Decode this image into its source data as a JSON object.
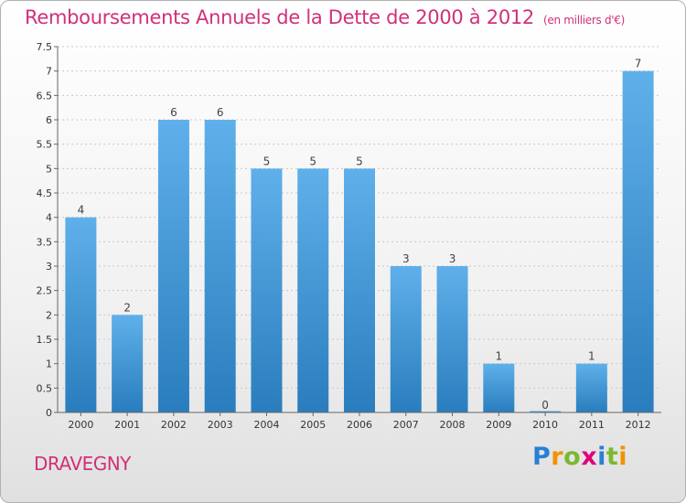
{
  "header": {
    "title": "Remboursements Annuels de la Dette de 2000 à 2012",
    "unit": "(en milliers d'€)"
  },
  "footer": {
    "commune": "DRAVEGNY",
    "logo": {
      "letters": [
        "P",
        "r",
        "o",
        "x",
        "i",
        "t",
        "i"
      ],
      "colors": [
        "#2a7fd4",
        "#f39200",
        "#7cb82f",
        "#e2007a",
        "#2a7fd4",
        "#7cb82f",
        "#f39200"
      ]
    }
  },
  "colors": {
    "title": "#d0307a",
    "bar_top": "#5fb0ea",
    "bar_bottom": "#2a7dbd",
    "grid": "#c8c8c8",
    "axis_text": "#333333"
  },
  "chart_data": {
    "type": "bar",
    "categories": [
      "2000",
      "2001",
      "2002",
      "2003",
      "2004",
      "2005",
      "2006",
      "2007",
      "2008",
      "2009",
      "2010",
      "2011",
      "2012"
    ],
    "values": [
      4,
      2,
      6,
      6,
      5,
      5,
      5,
      3,
      3,
      1,
      0,
      1,
      7
    ],
    "data_labels": [
      "4",
      "2",
      "6",
      "6",
      "5",
      "5",
      "5",
      "3",
      "3",
      "1",
      "0",
      "1",
      "7"
    ],
    "title": "Remboursements Annuels de la Dette de 2000 à 2012",
    "ylim": [
      0,
      7.5
    ],
    "yticks": [
      "0",
      "0.5",
      "1",
      "1.5",
      "2",
      "2.5",
      "3",
      "3.5",
      "4",
      "4.5",
      "5",
      "5.5",
      "6",
      "6.5",
      "7",
      "7.5"
    ],
    "grid": true
  }
}
